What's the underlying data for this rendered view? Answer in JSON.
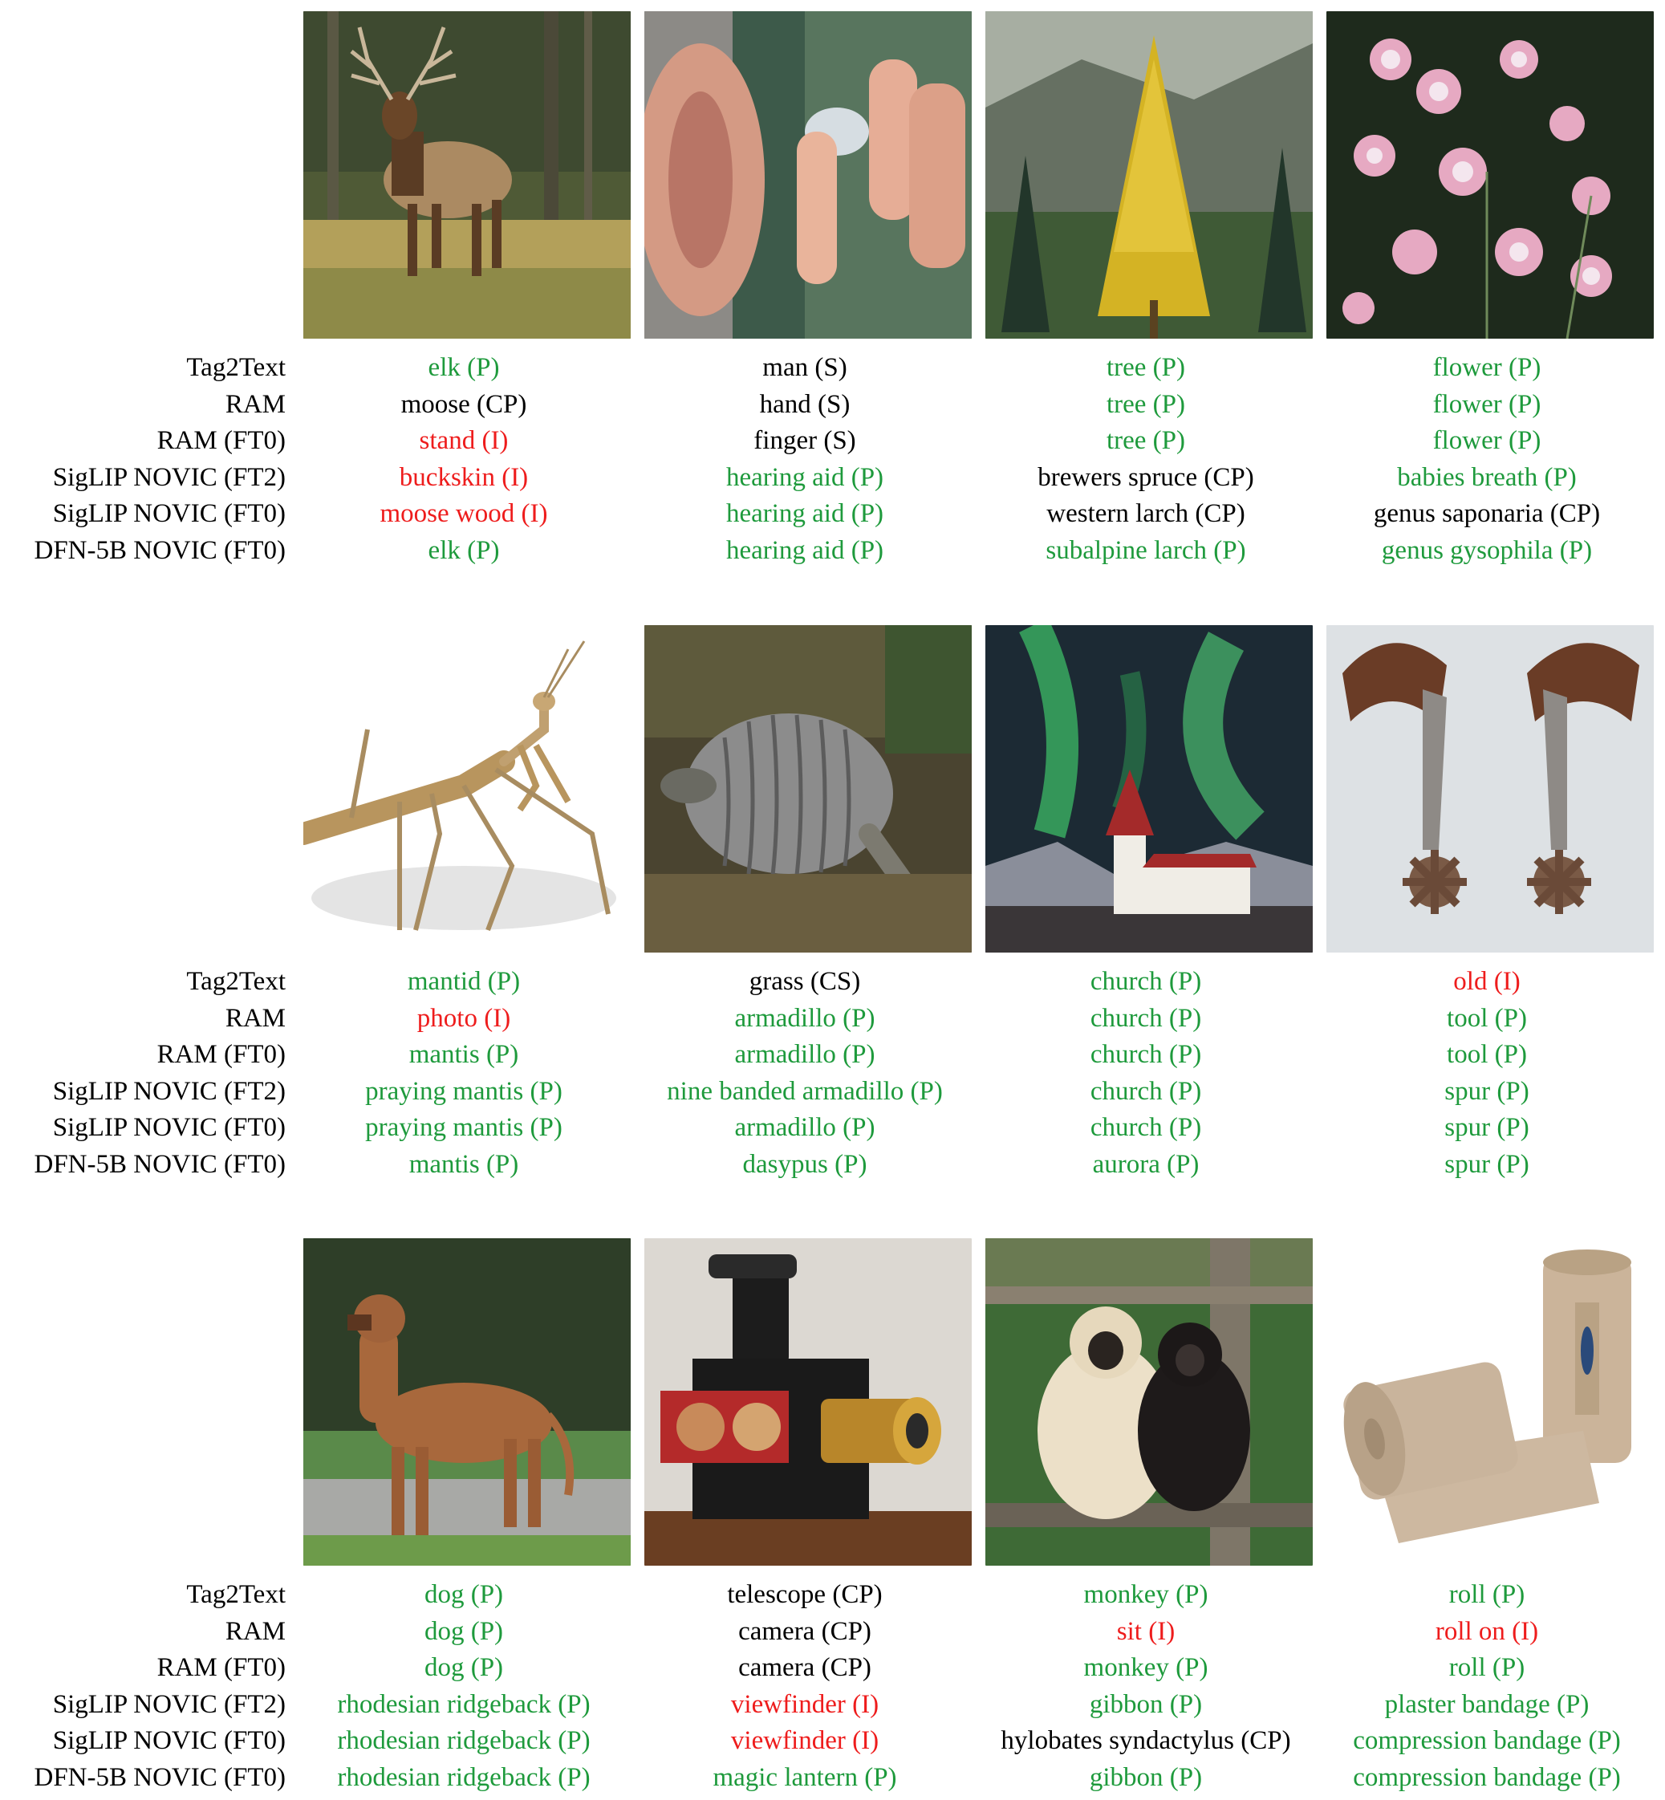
{
  "colors": {
    "P": "#1e9a3c",
    "CP": "#000000",
    "S": "#000000",
    "CS": "#000000",
    "I": "#ee1c1c"
  },
  "row_labels": [
    "Tag2Text",
    "RAM",
    "RAM (FT0)",
    "SigLIP NOVIC (FT2)",
    "SigLIP NOVIC (FT0)",
    "DFN-5B NOVIC (FT0)"
  ],
  "blocks": [
    {
      "images": [
        {
          "subject": "elk-photo",
          "preds": [
            {
              "text": "elk (P)",
              "cls": "P"
            },
            {
              "text": "moose (CP)",
              "cls": "CP"
            },
            {
              "text": "stand (I)",
              "cls": "I"
            },
            {
              "text": "buckskin (I)",
              "cls": "I"
            },
            {
              "text": "moose wood (I)",
              "cls": "I"
            },
            {
              "text": "elk (P)",
              "cls": "P"
            }
          ]
        },
        {
          "subject": "hearing-aid-photo",
          "preds": [
            {
              "text": "man (S)",
              "cls": "S"
            },
            {
              "text": "hand (S)",
              "cls": "S"
            },
            {
              "text": "finger (S)",
              "cls": "S"
            },
            {
              "text": "hearing aid (P)",
              "cls": "P"
            },
            {
              "text": "hearing aid (P)",
              "cls": "P"
            },
            {
              "text": "hearing aid (P)",
              "cls": "P"
            }
          ]
        },
        {
          "subject": "larch-tree-photo",
          "preds": [
            {
              "text": "tree (P)",
              "cls": "P"
            },
            {
              "text": "tree (P)",
              "cls": "P"
            },
            {
              "text": "tree (P)",
              "cls": "P"
            },
            {
              "text": "brewers spruce (CP)",
              "cls": "CP"
            },
            {
              "text": "western larch (CP)",
              "cls": "CP"
            },
            {
              "text": "subalpine larch (P)",
              "cls": "P"
            }
          ]
        },
        {
          "subject": "flower-photo",
          "preds": [
            {
              "text": "flower (P)",
              "cls": "P"
            },
            {
              "text": "flower (P)",
              "cls": "P"
            },
            {
              "text": "flower (P)",
              "cls": "P"
            },
            {
              "text": "babies breath (P)",
              "cls": "P"
            },
            {
              "text": "genus saponaria (CP)",
              "cls": "CP"
            },
            {
              "text": "genus gysophila (P)",
              "cls": "P"
            }
          ]
        }
      ]
    },
    {
      "images": [
        {
          "subject": "mantis-photo",
          "preds": [
            {
              "text": "mantid (P)",
              "cls": "P"
            },
            {
              "text": "photo (I)",
              "cls": "I"
            },
            {
              "text": "mantis (P)",
              "cls": "P"
            },
            {
              "text": "praying mantis (P)",
              "cls": "P"
            },
            {
              "text": "praying mantis (P)",
              "cls": "P"
            },
            {
              "text": "mantis (P)",
              "cls": "P"
            }
          ]
        },
        {
          "subject": "armadillo-photo",
          "preds": [
            {
              "text": "grass (CS)",
              "cls": "CS"
            },
            {
              "text": "armadillo (P)",
              "cls": "P"
            },
            {
              "text": "armadillo (P)",
              "cls": "P"
            },
            {
              "text": "nine banded armadillo (P)",
              "cls": "P"
            },
            {
              "text": "armadillo (P)",
              "cls": "P"
            },
            {
              "text": "dasypus (P)",
              "cls": "P"
            }
          ]
        },
        {
          "subject": "church-aurora-photo",
          "preds": [
            {
              "text": "church (P)",
              "cls": "P"
            },
            {
              "text": "church (P)",
              "cls": "P"
            },
            {
              "text": "church (P)",
              "cls": "P"
            },
            {
              "text": "church (P)",
              "cls": "P"
            },
            {
              "text": "church (P)",
              "cls": "P"
            },
            {
              "text": "aurora (P)",
              "cls": "P"
            }
          ]
        },
        {
          "subject": "spurs-photo",
          "preds": [
            {
              "text": "old (I)",
              "cls": "I"
            },
            {
              "text": "tool (P)",
              "cls": "P"
            },
            {
              "text": "tool (P)",
              "cls": "P"
            },
            {
              "text": "spur (P)",
              "cls": "P"
            },
            {
              "text": "spur (P)",
              "cls": "P"
            },
            {
              "text": "spur (P)",
              "cls": "P"
            }
          ]
        }
      ]
    },
    {
      "images": [
        {
          "subject": "dog-photo",
          "preds": [
            {
              "text": "dog (P)",
              "cls": "P"
            },
            {
              "text": "dog (P)",
              "cls": "P"
            },
            {
              "text": "dog (P)",
              "cls": "P"
            },
            {
              "text": "rhodesian ridgeback (P)",
              "cls": "P"
            },
            {
              "text": "rhodesian ridgeback (P)",
              "cls": "P"
            },
            {
              "text": "rhodesian ridgeback (P)",
              "cls": "P"
            }
          ]
        },
        {
          "subject": "magic-lantern-photo",
          "preds": [
            {
              "text": "telescope (CP)",
              "cls": "CP"
            },
            {
              "text": "camera (CP)",
              "cls": "CP"
            },
            {
              "text": "camera (CP)",
              "cls": "CP"
            },
            {
              "text": "viewfinder (I)",
              "cls": "I"
            },
            {
              "text": "viewfinder (I)",
              "cls": "I"
            },
            {
              "text": "magic lantern (P)",
              "cls": "P"
            }
          ]
        },
        {
          "subject": "gibbons-photo",
          "preds": [
            {
              "text": "monkey (P)",
              "cls": "P"
            },
            {
              "text": "sit (I)",
              "cls": "I"
            },
            {
              "text": "monkey (P)",
              "cls": "P"
            },
            {
              "text": "gibbon (P)",
              "cls": "P"
            },
            {
              "text": "hylobates syndactylus (CP)",
              "cls": "CP"
            },
            {
              "text": "gibbon (P)",
              "cls": "P"
            }
          ]
        },
        {
          "subject": "bandage-photo",
          "preds": [
            {
              "text": "roll (P)",
              "cls": "P"
            },
            {
              "text": "roll on (I)",
              "cls": "I"
            },
            {
              "text": "roll (P)",
              "cls": "P"
            },
            {
              "text": "plaster bandage (P)",
              "cls": "P"
            },
            {
              "text": "compression bandage (P)",
              "cls": "P"
            },
            {
              "text": "compression bandage (P)",
              "cls": "P"
            }
          ]
        }
      ]
    }
  ]
}
